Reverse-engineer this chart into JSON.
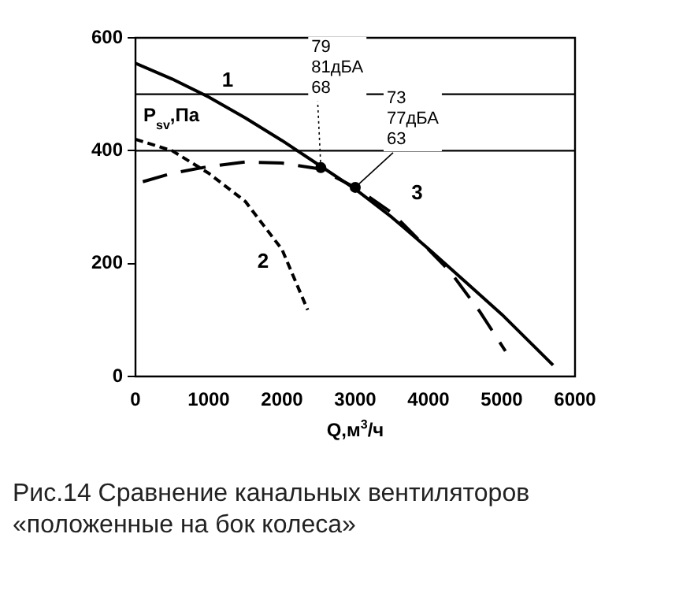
{
  "chart_data": {
    "type": "line",
    "xlabel": "Q,м$^{3}$/ч",
    "ylabel": "P$_{sv}$,Па",
    "xlim": [
      0,
      6000
    ],
    "xticks": [
      0,
      1000,
      2000,
      3000,
      4000,
      5000,
      6000
    ],
    "ylim": [
      0,
      600
    ],
    "yticks": [
      0,
      200,
      400,
      600
    ],
    "grid": false,
    "legend": false,
    "marker": "none",
    "series": [
      {
        "name": "1",
        "color": "#000000",
        "line_style": "solid",
        "x": [
          0,
          500,
          1000,
          1500,
          2000,
          2500,
          3000,
          3500,
          4000,
          4500,
          5000,
          5700
        ],
        "values": [
          555,
          527,
          495,
          458,
          418,
          375,
          332,
          282,
          226,
          168,
          110,
          20
        ]
      },
      {
        "name": "2",
        "color": "#000000",
        "line_style": "dashed",
        "x": [
          0,
          500,
          1000,
          1500,
          2000,
          2350
        ],
        "values": [
          420,
          400,
          360,
          310,
          225,
          118
        ]
      },
      {
        "name": "3",
        "color": "#000000",
        "line_style": "dashed",
        "x": [
          100,
          500,
          1000,
          1500,
          2000,
          2500,
          3000,
          3500,
          4000,
          4300,
          4700,
          5050
        ],
        "values": [
          345,
          360,
          372,
          380,
          378,
          368,
          335,
          290,
          225,
          185,
          115,
          45
        ]
      }
    ],
    "ref_lines": [
      {
        "axis": "y",
        "value": 500,
        "color": "#000000"
      },
      {
        "axis": "y",
        "value": 400,
        "color": "#000000"
      }
    ],
    "annotations": [
      {
        "text": "79\n81дБА\n68",
        "x": 2530,
        "y": 370
      },
      {
        "text": "73\n77дБА\n63",
        "x": 3000,
        "y": 335
      },
      "Рис.14  Сравнение канальных вентиляторов «положенные на бок колеса»"
    ]
  }
}
